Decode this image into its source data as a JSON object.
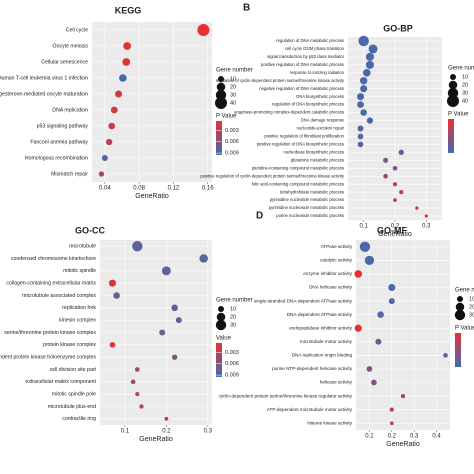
{
  "chart_data": [
    {
      "type": "dot",
      "title": "KEGG",
      "xlabel": "GeneRatio",
      "categories": [
        "Cell cycle",
        "Oocyte meiosis",
        "Cellular senescence",
        "Human T-cell leukemia virus 1 infection",
        "Progesterone-mediated oocyte maturation",
        "DNA replication",
        "p53 signaling pathway",
        "Fanconi anemia pathway",
        "Homologous recombination",
        "Mismatch repair"
      ],
      "x": [
        0.155,
        0.066,
        0.065,
        0.061,
        0.056,
        0.051,
        0.048,
        0.045,
        0.04,
        0.036
      ],
      "sizes": [
        40,
        17,
        17,
        16,
        14,
        13,
        12,
        11,
        10,
        8
      ],
      "pvalues": [
        0.0005,
        0.001,
        0.0012,
        0.009,
        0.0018,
        0.002,
        0.0022,
        0.003,
        0.008,
        0.004
      ],
      "xlim": [
        0.025,
        0.165
      ],
      "xticks": [
        0.04,
        0.08,
        0.12,
        0.16
      ],
      "size_legend": {
        "title": "Gene number",
        "values": [
          10,
          20,
          30,
          40
        ]
      },
      "color_legend": {
        "title": "P Value",
        "lim": [
          0.0005,
          0.0095
        ],
        "ticks": [
          0.003,
          0.006,
          0.009
        ],
        "colors": [
          "#e8312e",
          "#3f6cb3"
        ]
      }
    },
    {
      "type": "dot",
      "letter": "B",
      "title": "GO-BP",
      "xlabel": "GeneRatio",
      "categories": [
        "regulation of DNA metabolic process",
        "cell cycle G2/M phase transition",
        "signal transduction by p53 class mediator",
        "positive regulation of DNA metabolic process",
        "response to ionizing radiation",
        "regulation of cyclin-dependent protein serine/threonine kinase activity",
        "negative regulation of DNA metabolic process",
        "DNA biosynthetic process",
        "regulation of DNA biosynthetic process",
        "anaphase-promoting complex-dependent catabolic process",
        "DNA damage response",
        "nucleotide-excision repair",
        "positive regulation of fibroblast proliferation",
        "positive regulation of DNA biosynthetic process",
        "nucleobase biosynthetic process",
        "glutamine metabolic process",
        "pteridine-containing compound metabolic process",
        "positive regulation of cyclin-dependent protein serine/threonine kinase activity",
        "folic acid-containing compound metabolic process",
        "tetrahydrofolate metabolic process",
        "pyrimidine nucleotide metabolic process",
        "pyrimidine nucleoside metabolic process",
        "purine nucleoside metabolic process"
      ],
      "x": [
        0.1,
        0.13,
        0.12,
        0.12,
        0.11,
        0.1,
        0.1,
        0.09,
        0.09,
        0.1,
        0.12,
        0.09,
        0.09,
        0.09,
        0.22,
        0.17,
        0.2,
        0.17,
        0.2,
        0.22,
        0.2,
        0.27,
        0.3
      ],
      "sizes": [
        30,
        22,
        18,
        18,
        16,
        15,
        14,
        14,
        13,
        12,
        11,
        10,
        9,
        9,
        8,
        7,
        6,
        6,
        5,
        5,
        4,
        3,
        3
      ],
      "pvalues": [
        0.03,
        0.03,
        0.03,
        0.03,
        0.03,
        0.03,
        0.03,
        0.03,
        0.03,
        0.03,
        0.03,
        0.028,
        0.028,
        0.028,
        0.025,
        0.022,
        0.02,
        0.015,
        0.01,
        0.008,
        0.006,
        0.005,
        0.004
      ],
      "xlim": [
        0.05,
        0.35
      ],
      "xticks": [
        0.1,
        0.2,
        0.3
      ],
      "size_legend": {
        "title": "Gene number",
        "values": [
          10,
          20,
          30,
          40
        ]
      },
      "color_legend": {
        "title": "P Value",
        "lim": [
          0.002,
          0.032
        ],
        "colors": [
          "#e8312e",
          "#3f6cb3"
        ]
      }
    },
    {
      "type": "dot",
      "title": "GO-CC",
      "xlabel": "GeneRatio",
      "categories": [
        "microtubule",
        "condensed chromosome kinetochore",
        "mitotic spindle",
        "collagen-containing extracellular matrix",
        "microtubule associated complex",
        "replication fork",
        "kinesin complex",
        "serine/threonine protein kinase complex",
        "protein kinase complex",
        "cyclin-dependent protein kinase holoenzyme complex",
        "cell division site part",
        "extracellular matrix component",
        "mitotic spindle pole",
        "microtubule plus-end",
        "contractile ring"
      ],
      "x": [
        0.13,
        0.29,
        0.2,
        0.07,
        0.08,
        0.22,
        0.23,
        0.19,
        0.07,
        0.22,
        0.13,
        0.12,
        0.13,
        0.14,
        0.2
      ],
      "sizes": [
        30,
        20,
        22,
        14,
        12,
        12,
        10,
        10,
        9,
        8,
        6,
        6,
        5,
        5,
        4
      ],
      "pvalues": [
        0.008,
        0.008,
        0.008,
        0.001,
        0.007,
        0.008,
        0.008,
        0.007,
        0.001,
        0.006,
        0.005,
        0.004,
        0.003,
        0.003,
        0.002
      ],
      "xlim": [
        0.04,
        0.31
      ],
      "xticks": [
        0.1,
        0.2,
        0.3
      ],
      "size_legend": {
        "title": "Gene number",
        "values": [
          10,
          20,
          30
        ]
      },
      "color_legend": {
        "title": "Value",
        "lim": [
          0.0005,
          0.0095
        ],
        "ticks": [
          0.003,
          0.006,
          0.009
        ],
        "colors": [
          "#e8312e",
          "#3f6cb3"
        ]
      }
    },
    {
      "type": "dot",
      "letter": "D",
      "title": "GO-MF",
      "xlabel": "GeneRatio",
      "categories": [
        "ATPase activity",
        "catalytic activity",
        "enzyme inhibitor activity",
        "DNA helicase activity",
        "single-stranded DNA-dependent ATPase activity",
        "DNA-dependent ATPase activity",
        "endopeptidase inhibitor activity",
        "microtubule motor activity",
        "DNA replication origin binding",
        "purine NTP-dependent helicase activity",
        "helicase activity",
        "cyclin-dependent protein serine/threonine kinase regulator activity",
        "ATP-dependent microtubule motor activity",
        "histone kinase activity"
      ],
      "x": [
        0.08,
        0.1,
        0.05,
        0.2,
        0.2,
        0.15,
        0.05,
        0.14,
        0.44,
        0.1,
        0.12,
        0.25,
        0.2,
        0.2
      ],
      "sizes": [
        30,
        24,
        16,
        14,
        10,
        12,
        14,
        10,
        6,
        9,
        9,
        5,
        5,
        4
      ],
      "pvalues": [
        0.03,
        0.03,
        0.003,
        0.03,
        0.03,
        0.028,
        0.004,
        0.025,
        0.025,
        0.02,
        0.02,
        0.015,
        0.01,
        0.01
      ],
      "xlim": [
        0.04,
        0.46
      ],
      "xticks": [
        0.1,
        0.2,
        0.3,
        0.4
      ],
      "size_legend": {
        "title": "Gene number",
        "values": [
          10,
          20,
          30
        ]
      },
      "color_legend": {
        "title": "P Value",
        "lim": [
          0.002,
          0.032
        ],
        "colors": [
          "#e8312e",
          "#3f6cb3"
        ]
      }
    }
  ]
}
